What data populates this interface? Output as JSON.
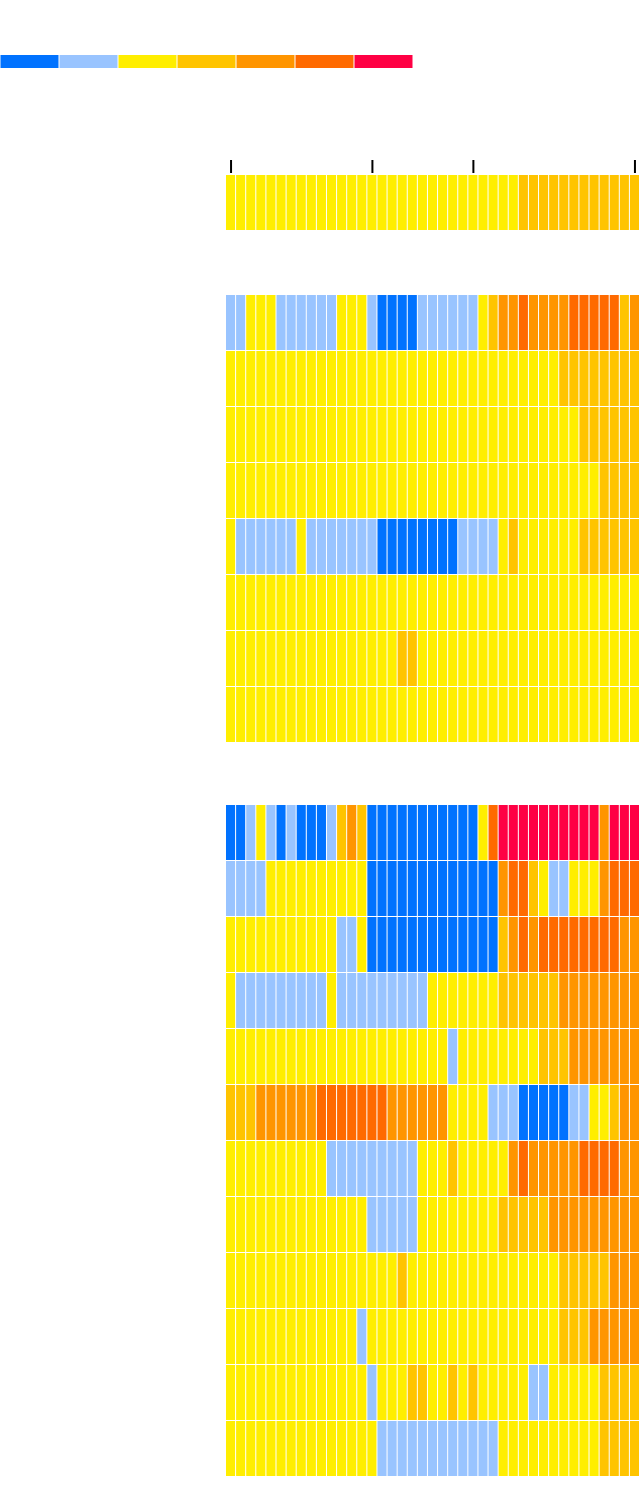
{
  "chart_data": {
    "type": "heatmap",
    "colors": [
      "#0072ff",
      "#99c4ff",
      "#ffee00",
      "#ffc400",
      "#ff9500",
      "#ff6a00",
      "#ff0044"
    ],
    "xlim": [
      -0.5,
      40.5
    ],
    "xticks": [
      0,
      14,
      24,
      40
    ],
    "groups": [
      {
        "rows": [
          [
            2,
            2,
            2,
            2,
            2,
            2,
            2,
            2,
            2,
            2,
            2,
            2,
            2,
            2,
            2,
            2,
            2,
            2,
            2,
            2,
            2,
            2,
            2,
            2,
            2,
            2,
            2,
            2,
            2,
            3,
            3,
            3,
            3,
            3,
            3,
            3,
            3,
            3,
            3,
            3,
            3
          ]
        ]
      },
      {
        "rows": [
          [
            1,
            1,
            2,
            2,
            2,
            1,
            1,
            1,
            1,
            1,
            1,
            2,
            2,
            2,
            1,
            0,
            0,
            0,
            0,
            1,
            1,
            1,
            1,
            1,
            1,
            2,
            3,
            4,
            4,
            5,
            4,
            4,
            4,
            4,
            5,
            5,
            5,
            5,
            5,
            3,
            4
          ],
          [
            2,
            2,
            2,
            2,
            2,
            2,
            2,
            2,
            2,
            2,
            2,
            2,
            2,
            2,
            2,
            2,
            2,
            2,
            2,
            2,
            2,
            2,
            2,
            2,
            2,
            2,
            2,
            2,
            2,
            2,
            2,
            2,
            2,
            3,
            3,
            3,
            3,
            3,
            3,
            3,
            3
          ],
          [
            2,
            2,
            2,
            2,
            2,
            2,
            2,
            2,
            2,
            2,
            2,
            2,
            2,
            2,
            2,
            2,
            2,
            2,
            2,
            2,
            2,
            2,
            2,
            2,
            2,
            2,
            2,
            2,
            2,
            2,
            2,
            2,
            2,
            2,
            2,
            3,
            3,
            3,
            3,
            3,
            3
          ],
          [
            2,
            2,
            2,
            2,
            2,
            2,
            2,
            2,
            2,
            2,
            2,
            2,
            2,
            2,
            2,
            2,
            2,
            2,
            2,
            2,
            2,
            2,
            2,
            2,
            2,
            2,
            2,
            2,
            2,
            2,
            2,
            2,
            2,
            2,
            2,
            2,
            2,
            3,
            3,
            3,
            3
          ],
          [
            2,
            1,
            1,
            1,
            1,
            1,
            1,
            2,
            1,
            1,
            1,
            1,
            1,
            1,
            1,
            0,
            0,
            0,
            0,
            0,
            0,
            0,
            0,
            1,
            1,
            1,
            1,
            2,
            3,
            2,
            2,
            2,
            2,
            2,
            2,
            3,
            3,
            3,
            3,
            3,
            3
          ],
          [
            2,
            2,
            2,
            2,
            2,
            2,
            2,
            2,
            2,
            2,
            2,
            2,
            2,
            2,
            2,
            2,
            2,
            2,
            2,
            2,
            2,
            2,
            2,
            2,
            2,
            2,
            2,
            2,
            2,
            2,
            2,
            2,
            2,
            2,
            2,
            2,
            2,
            2,
            2,
            2,
            2
          ],
          [
            2,
            2,
            2,
            2,
            2,
            2,
            2,
            2,
            2,
            2,
            2,
            2,
            2,
            2,
            2,
            2,
            2,
            3,
            3,
            2,
            2,
            2,
            2,
            2,
            2,
            2,
            2,
            2,
            2,
            2,
            2,
            2,
            2,
            2,
            2,
            2,
            2,
            2,
            2,
            2,
            2
          ],
          [
            2,
            2,
            2,
            2,
            2,
            2,
            2,
            2,
            2,
            2,
            2,
            2,
            2,
            2,
            2,
            2,
            2,
            2,
            2,
            2,
            2,
            2,
            2,
            2,
            2,
            2,
            2,
            2,
            2,
            2,
            2,
            2,
            2,
            2,
            2,
            2,
            2,
            2,
            2,
            2,
            2
          ]
        ]
      },
      {
        "rows": [
          [
            0,
            0,
            1,
            2,
            1,
            0,
            1,
            0,
            0,
            0,
            1,
            3,
            4,
            3,
            0,
            0,
            0,
            0,
            0,
            0,
            0,
            0,
            0,
            0,
            0,
            2,
            5,
            6,
            6,
            6,
            6,
            6,
            6,
            6,
            6,
            6,
            6,
            4,
            6,
            6,
            6
          ],
          [
            1,
            1,
            1,
            1,
            2,
            2,
            2,
            2,
            2,
            2,
            2,
            2,
            2,
            2,
            0,
            0,
            0,
            0,
            0,
            0,
            0,
            0,
            0,
            0,
            0,
            0,
            0,
            4,
            5,
            5,
            3,
            2,
            1,
            1,
            2,
            2,
            2,
            4,
            5,
            5,
            5
          ],
          [
            2,
            2,
            2,
            2,
            2,
            2,
            2,
            2,
            2,
            2,
            2,
            1,
            1,
            2,
            0,
            0,
            0,
            0,
            0,
            0,
            0,
            0,
            0,
            0,
            0,
            0,
            0,
            3,
            4,
            5,
            4,
            5,
            5,
            5,
            5,
            5,
            5,
            5,
            5,
            4,
            4
          ],
          [
            2,
            1,
            1,
            1,
            1,
            1,
            1,
            1,
            1,
            1,
            2,
            1,
            1,
            1,
            1,
            1,
            1,
            1,
            1,
            1,
            2,
            2,
            2,
            2,
            2,
            2,
            2,
            3,
            3,
            3,
            3,
            3,
            3,
            4,
            4,
            4,
            4,
            4,
            4,
            4,
            4
          ],
          [
            2,
            2,
            2,
            2,
            2,
            2,
            2,
            2,
            2,
            2,
            2,
            2,
            2,
            2,
            2,
            2,
            2,
            2,
            2,
            2,
            2,
            2,
            1,
            2,
            2,
            2,
            2,
            2,
            2,
            2,
            2,
            3,
            3,
            3,
            4,
            4,
            4,
            4,
            4,
            4,
            4
          ],
          [
            3,
            3,
            3,
            4,
            4,
            4,
            4,
            4,
            4,
            5,
            5,
            5,
            5,
            5,
            5,
            5,
            4,
            4,
            4,
            4,
            4,
            4,
            2,
            2,
            2,
            2,
            1,
            1,
            1,
            0,
            0,
            0,
            0,
            0,
            1,
            1,
            2,
            2,
            3,
            4,
            4
          ],
          [
            2,
            2,
            2,
            2,
            2,
            2,
            2,
            2,
            2,
            2,
            1,
            1,
            1,
            1,
            1,
            1,
            1,
            1,
            1,
            2,
            2,
            2,
            3,
            2,
            2,
            2,
            2,
            2,
            4,
            5,
            4,
            4,
            4,
            4,
            4,
            5,
            5,
            5,
            5,
            4,
            4
          ],
          [
            2,
            2,
            2,
            2,
            2,
            2,
            2,
            2,
            2,
            2,
            2,
            2,
            2,
            2,
            1,
            1,
            1,
            1,
            1,
            2,
            2,
            2,
            2,
            2,
            2,
            2,
            2,
            3,
            3,
            3,
            3,
            3,
            4,
            4,
            4,
            4,
            4,
            4,
            4,
            4,
            4
          ],
          [
            2,
            2,
            2,
            2,
            2,
            2,
            2,
            2,
            2,
            2,
            2,
            2,
            2,
            2,
            2,
            2,
            2,
            3,
            2,
            2,
            2,
            2,
            2,
            2,
            2,
            2,
            2,
            2,
            2,
            2,
            2,
            2,
            2,
            3,
            3,
            3,
            3,
            3,
            4,
            4,
            4
          ],
          [
            2,
            2,
            2,
            2,
            2,
            2,
            2,
            2,
            2,
            2,
            2,
            2,
            2,
            1,
            2,
            2,
            2,
            2,
            2,
            2,
            2,
            2,
            2,
            2,
            2,
            2,
            2,
            2,
            2,
            2,
            2,
            2,
            2,
            3,
            3,
            3,
            4,
            4,
            4,
            4,
            4
          ],
          [
            2,
            2,
            2,
            2,
            2,
            2,
            2,
            2,
            2,
            2,
            2,
            2,
            2,
            2,
            1,
            2,
            2,
            2,
            3,
            3,
            2,
            2,
            3,
            2,
            3,
            2,
            2,
            2,
            2,
            2,
            1,
            1,
            2,
            2,
            2,
            2,
            2,
            3,
            3,
            3,
            3
          ],
          [
            2,
            2,
            2,
            2,
            2,
            2,
            2,
            2,
            2,
            2,
            2,
            2,
            2,
            2,
            2,
            1,
            1,
            1,
            1,
            1,
            1,
            1,
            1,
            1,
            1,
            1,
            1,
            2,
            2,
            2,
            2,
            2,
            2,
            2,
            2,
            2,
            2,
            3,
            3,
            3,
            3
          ]
        ]
      }
    ]
  }
}
